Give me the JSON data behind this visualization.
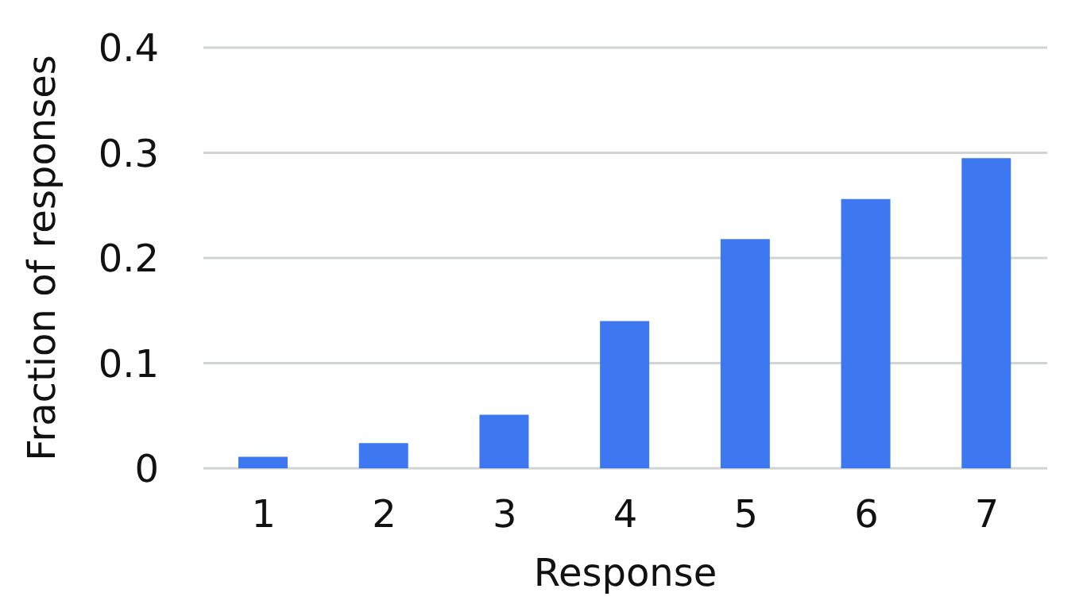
{
  "chart_data": {
    "type": "bar",
    "xlabel": "Response",
    "ylabel": "Fraction of responses",
    "categories": [
      "1",
      "2",
      "3",
      "4",
      "5",
      "6",
      "7"
    ],
    "values": [
      0.011,
      0.024,
      0.051,
      0.14,
      0.218,
      0.256,
      0.295
    ],
    "color": "#3d78f0",
    "ylim": [
      0,
      0.4
    ],
    "yticks": [
      0,
      0.1,
      0.2,
      0.3,
      0.4
    ],
    "grid": "y"
  }
}
